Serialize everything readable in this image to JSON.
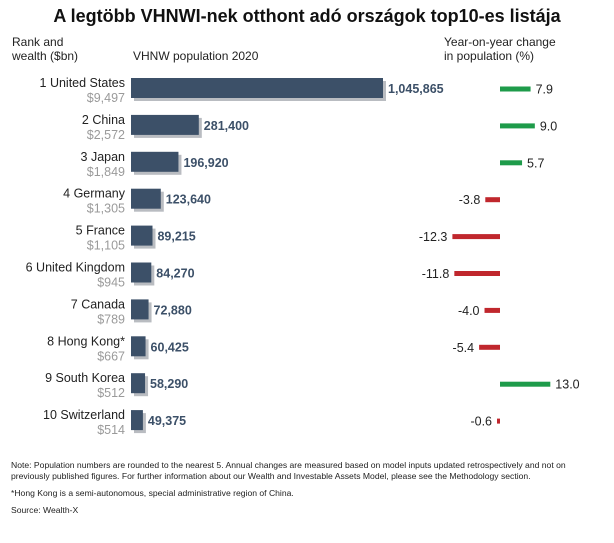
{
  "header": {
    "title": "A legtöbb VHNWI-nek otthont adó országok top10-es listája",
    "rank_label": "Rank and\nwealth ($bn)",
    "pop_label": "VHNW population 2020",
    "change_label": "Year-on-year change\nin population (%)"
  },
  "colors": {
    "bar": "#3c5068",
    "bar_shadow": "#b9bcc1",
    "positive": "#1e9b4a",
    "negative": "#c0272d",
    "value_text": "#3c5068",
    "wealth_text": "#9a9a9a"
  },
  "chart_data": [
    {
      "type": "bar",
      "orientation": "horizontal",
      "title": "VHNW population 2020",
      "categories": [
        "1 United States",
        "2 China",
        "3 Japan",
        "4 Germany",
        "5 France",
        "6 United Kingdom",
        "7 Canada",
        "8 Hong Kong*",
        "9 South Korea",
        "10 Switzerland"
      ],
      "wealth": [
        "$9,497",
        "$2,572",
        "$1,849",
        "$1,305",
        "$1,105",
        "$945",
        "$789",
        "$667",
        "$512",
        "$514"
      ],
      "values": [
        1045865,
        281400,
        196920,
        123640,
        89215,
        84270,
        72880,
        60425,
        58290,
        49375
      ],
      "value_labels": [
        "1,045,865",
        "281,400",
        "196,920",
        "123,640",
        "89,215",
        "84,270",
        "72,880",
        "60,425",
        "58,290",
        "49,375"
      ]
    },
    {
      "type": "bar",
      "orientation": "horizontal",
      "title": "Year-on-year change in population (%)",
      "categories": [
        "1 United States",
        "2 China",
        "3 Japan",
        "4 Germany",
        "5 France",
        "6 United Kingdom",
        "7 Canada",
        "8 Hong Kong*",
        "9 South Korea",
        "10 Switzerland"
      ],
      "values": [
        7.9,
        9.0,
        5.7,
        -3.8,
        -12.3,
        -11.8,
        -4.0,
        -5.4,
        13.0,
        -0.6
      ],
      "value_labels": [
        "7.9",
        "9.0",
        "5.7",
        "-3.8",
        "-12.3",
        "-11.8",
        "-4.0",
        "-5.4",
        "13.0",
        "-0.6"
      ]
    }
  ],
  "notes": {
    "note1": "Note: Population numbers are rounded to the nearest 5. Annual changes are measured based on model inputs updated retrospectively and not on previously published figures. For further information about our Wealth and Investable Assets Model, please see the Methodology section.",
    "note2": "*Hong Kong is a semi-autonomous, special administrative region of China.",
    "source": "Source: Wealth-X"
  }
}
